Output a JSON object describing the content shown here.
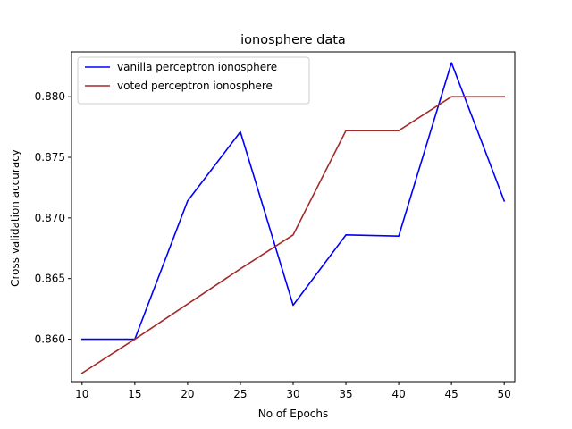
{
  "chart_data": {
    "type": "line",
    "title": "ionosphere data",
    "xlabel": "No of Epochs",
    "ylabel": "Cross validation accuracy",
    "x": [
      10,
      15,
      20,
      25,
      30,
      35,
      40,
      45,
      50
    ],
    "xticks": [
      10,
      15,
      20,
      25,
      30,
      35,
      40,
      45,
      50
    ],
    "xlim": [
      9,
      51
    ],
    "yticks": [
      0.86,
      0.865,
      0.87,
      0.875,
      0.88
    ],
    "ytick_labels": [
      "0.860",
      "0.865",
      "0.870",
      "0.875",
      "0.880"
    ],
    "ylim": [
      0.8565,
      0.8837
    ],
    "grid": false,
    "legend_position": "top-left",
    "series": [
      {
        "name": "vanilla perceptron ionosphere",
        "color": "#0000ff",
        "values": [
          0.86,
          0.86,
          0.8714,
          0.8771,
          0.8628,
          0.8686,
          0.8685,
          0.8828,
          0.8714
        ]
      },
      {
        "name": "voted perceptron ionosphere",
        "color": "#a52a2a",
        "values": [
          0.8572,
          0.86,
          0.8629,
          0.8658,
          0.8686,
          0.8772,
          0.8772,
          0.88,
          0.88
        ]
      }
    ]
  }
}
